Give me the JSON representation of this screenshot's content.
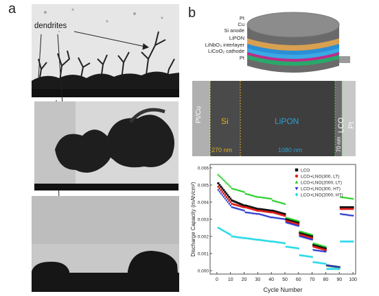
{
  "panels": {
    "a": {
      "letter": "a",
      "annotation": "dendrites"
    },
    "b": {
      "letter": "b",
      "stack_layers": [
        "Pt",
        "Cu",
        "Si anode",
        "LiPON",
        "LiNbO₃ interlayer",
        "LiCoO₂ cathode",
        "Pt"
      ],
      "sem_labels": {
        "left_edge": "Pt/Cu",
        "si": "Si",
        "lipon": "LiPON",
        "lco": "LCO",
        "pt": "Pt",
        "thick_si": "270 nm",
        "thick_lipon": "1080 nm",
        "thick_lco": "70 nm"
      },
      "colors": {
        "si_label": "#e0b020",
        "lipon_label": "#2aa0d8",
        "lco_label": "#ffffff",
        "lco_line": "#55cc55"
      }
    }
  },
  "chart_data": {
    "type": "scatter",
    "xlabel": "Cycle Number",
    "ylabel": "Discharge Capacity (mAh/cm²)",
    "xlim": [
      -5,
      102
    ],
    "ylim": [
      -0.0002,
      0.0062
    ],
    "xticks": [
      "0",
      "10",
      "20",
      "30",
      "40",
      "50",
      "60",
      "70",
      "80",
      "90",
      "100"
    ],
    "yticks": [
      "0.000",
      "0.001",
      "0.002",
      "0.003",
      "0.004",
      "0.005",
      "0.006"
    ],
    "legend_position": "top-right",
    "segments": [
      [
        1,
        10
      ],
      [
        11,
        20
      ],
      [
        21,
        30
      ],
      [
        31,
        40
      ],
      [
        41,
        50
      ],
      [
        51,
        60
      ],
      [
        61,
        70
      ],
      [
        71,
        80
      ],
      [
        81,
        90
      ],
      [
        91,
        100
      ]
    ],
    "series": [
      {
        "name": "LCO",
        "marker": "square",
        "color": "#111111",
        "segments": [
          [
            0.0051,
            0.0042
          ],
          [
            0.0041,
            0.0038
          ],
          [
            0.0038,
            0.0036
          ],
          [
            0.0036,
            0.0035
          ],
          [
            0.0035,
            0.0033
          ],
          [
            0.003,
            0.0028
          ],
          [
            0.0022,
            0.002
          ],
          [
            0.0015,
            0.0013
          ],
          [
            0.0003,
            0.0002
          ],
          [
            0.0037,
            0.0037
          ]
        ]
      },
      {
        "name": "LCO+LNO(300, LT)",
        "marker": "circle",
        "color": "#e0201c",
        "segments": [
          [
            0.0049,
            0.004
          ],
          [
            0.0039,
            0.0037
          ],
          [
            0.0037,
            0.0035
          ],
          [
            0.0035,
            0.0034
          ],
          [
            0.0034,
            0.0032
          ],
          [
            0.0029,
            0.0027
          ],
          [
            0.0021,
            0.0019
          ],
          [
            0.0014,
            0.0012
          ],
          [
            0.0003,
            0.0002
          ],
          [
            0.0036,
            0.0036
          ]
        ]
      },
      {
        "name": "LCO+LNO(2000, LT)",
        "marker": "triangle-up",
        "color": "#22cc22",
        "segments": [
          [
            0.0056,
            0.0049
          ],
          [
            0.0048,
            0.0046
          ],
          [
            0.0045,
            0.0043
          ],
          [
            0.0043,
            0.0042
          ],
          [
            0.0041,
            0.0039
          ],
          [
            0.0031,
            0.0029
          ],
          [
            0.0023,
            0.0021
          ],
          [
            0.0016,
            0.0014
          ],
          [
            0.0003,
            0.0002
          ],
          [
            0.0043,
            0.0042
          ]
        ]
      },
      {
        "name": "LCO+LNO(300, HT)",
        "marker": "triangle-down",
        "color": "#1f2fcc",
        "segments": [
          [
            0.0047,
            0.0038
          ],
          [
            0.0037,
            0.0035
          ],
          [
            0.0034,
            0.0033
          ],
          [
            0.0033,
            0.0031
          ],
          [
            0.0031,
            0.003
          ],
          [
            0.0028,
            0.0026
          ],
          [
            0.002,
            0.0018
          ],
          [
            0.0012,
            0.0011
          ],
          [
            0.0003,
            0.0002
          ],
          [
            0.0033,
            0.0032
          ]
        ]
      },
      {
        "name": "LCO+LNO(2000, HT)",
        "marker": "diamond",
        "color": "#22d8e8",
        "segments": [
          [
            0.0025,
            0.0021
          ],
          [
            0.002,
            0.0019
          ],
          [
            0.0019,
            0.0018
          ],
          [
            0.0018,
            0.0017
          ],
          [
            0.0017,
            0.0016
          ],
          [
            0.0014,
            0.0013
          ],
          [
            0.0009,
            0.0008
          ],
          [
            0.0005,
            0.0004
          ],
          [
            0.0001,
            0.0001
          ],
          [
            0.0017,
            0.0017
          ]
        ]
      }
    ]
  }
}
